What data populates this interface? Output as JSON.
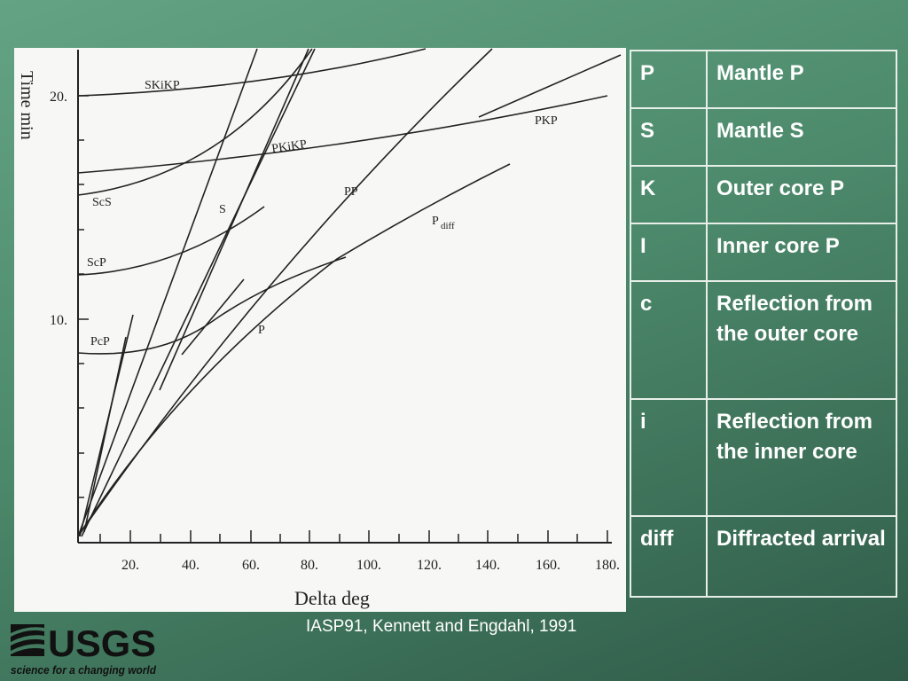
{
  "figure": {
    "y_axis_label": "Time min",
    "x_axis_label": "Delta deg",
    "y_ticks": [
      "10.",
      "20."
    ],
    "x_ticks": [
      "20.",
      "40.",
      "60.",
      "80.",
      "100.",
      "120.",
      "140.",
      "160.",
      "180."
    ],
    "curve_labels": [
      "SKiKP",
      "PKiKP",
      "PKP",
      "ScS",
      "S",
      "PP",
      "P",
      "ScP",
      "PcP",
      "P"
    ],
    "curve_label_sub": "diff"
  },
  "table": {
    "rows": [
      [
        "P",
        "Mantle P"
      ],
      [
        "S",
        "Mantle S"
      ],
      [
        "K",
        "Outer core P"
      ],
      [
        "I",
        "Inner core P"
      ],
      [
        "c",
        "Reflection from the outer core"
      ],
      [
        "i",
        "Reflection from the inner core"
      ],
      [
        "diff",
        "Diffracted arrival"
      ]
    ]
  },
  "caption": "IASP91, Kennett and Engdahl, 1991",
  "logo": {
    "name": "USGS",
    "tagline": "science for a changing world"
  }
}
